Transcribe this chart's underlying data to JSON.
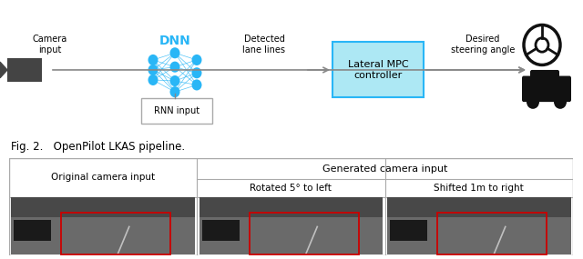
{
  "title": "Fig. 2.   OpenPilot LKAS pipeline.",
  "top_section": {
    "camera_label": "Camera\ninput",
    "dnn_label": "DNN",
    "rnn_label": "RNN input",
    "detected_label": "Detected\nlane lines",
    "mpc_label": "Lateral MPC\ncontroller",
    "desired_label": "Desired\nsteering angle",
    "dnn_color": "#29b6f6",
    "mpc_box_facecolor": "#ade8f4",
    "mpc_box_edgecolor": "#29b6f6",
    "arrow_color": "#888888",
    "line_color": "#888888"
  },
  "bottom_section": {
    "col1_header": "Original camera input",
    "col2_header": "Generated camera input",
    "col2a_header": "Rotated 5° to left",
    "col2b_header": "Shifted 1m to right",
    "border_color": "#aaaaaa",
    "red_rect_color": "#cc0000",
    "img_dark": "#404040",
    "img_mid": "#606060",
    "img_light": "#888888"
  }
}
